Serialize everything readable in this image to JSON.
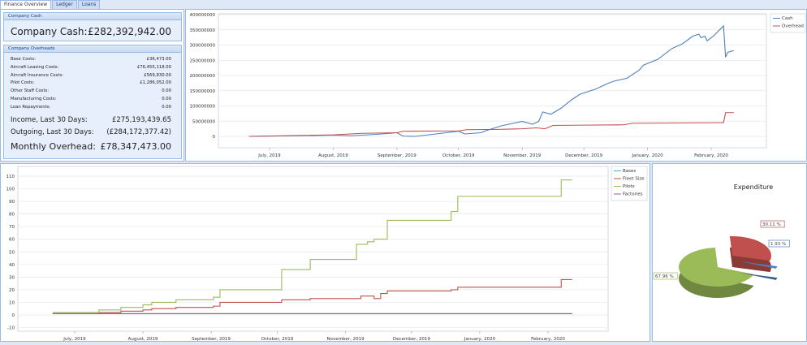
{
  "tabs": [
    "Finance Overview",
    "Ledger",
    "Loans"
  ],
  "company_cash": {
    "header": "Company Cash",
    "label": "Company Cash:",
    "value": "£282,392,942.00"
  },
  "overheads": {
    "header": "Company Overheads",
    "rows": [
      {
        "label": "Base Costs:",
        "value": "£36,473.00"
      },
      {
        "label": "Aircraft Leasing Costs:",
        "value": "£76,455,118.00"
      },
      {
        "label": "Aircraft Insurance Costs:",
        "value": "£569,830.00"
      },
      {
        "label": "Pilot Costs:",
        "value": "£1,286,052.00"
      },
      {
        "label": "Other Staff Costs:",
        "value": "0.00"
      },
      {
        "label": "Manufacturing Costs:",
        "value": "0.00"
      },
      {
        "label": "Loan Repayments:",
        "value": "0.00"
      }
    ],
    "income": {
      "label": "Income, Last 30 Days:",
      "value": "£275,193,439.65"
    },
    "outgoing": {
      "label": "Outgoing, Last 30 Days:",
      "value": "(£284,172,377.42)"
    },
    "monthly": {
      "label": "Monthly Overhead:",
      "value": "£78,347,473.00"
    }
  },
  "chart_data": [
    {
      "type": "line",
      "ylim": [
        0,
        400000000
      ],
      "yticks": [
        0,
        50000000,
        100000000,
        150000000,
        200000000,
        250000000,
        300000000,
        350000000,
        400000000
      ],
      "xticks": [
        [
          "2019-07-01",
          "July, 2019"
        ],
        [
          "2019-08-01",
          "August, 2019"
        ],
        [
          "2019-09-01",
          "September, 2019"
        ],
        [
          "2019-10-01",
          "October, 2019"
        ],
        [
          "2019-11-01",
          "November, 2019"
        ],
        [
          "2019-12-01",
          "December, 2019"
        ],
        [
          "2020-01-01",
          "January, 2020"
        ],
        [
          "2020-02-01",
          "February, 2020"
        ]
      ],
      "grid": true,
      "legend": "top-right",
      "series": [
        {
          "name": "Cash",
          "color": "#4f81bd",
          "points": [
            [
              "2019-06-21",
              0
            ],
            [
              "2019-07-15",
              2000000
            ],
            [
              "2019-08-01",
              4000000
            ],
            [
              "2019-08-10",
              2000000
            ],
            [
              "2019-08-25",
              8000000
            ],
            [
              "2019-09-01",
              12000000
            ],
            [
              "2019-09-04",
              1000000
            ],
            [
              "2019-09-10",
              0
            ],
            [
              "2019-09-25",
              12000000
            ],
            [
              "2019-10-01",
              17000000
            ],
            [
              "2019-10-04",
              8000000
            ],
            [
              "2019-10-12",
              12000000
            ],
            [
              "2019-10-14",
              18000000
            ],
            [
              "2019-10-22",
              35000000
            ],
            [
              "2019-10-27",
              42000000
            ],
            [
              "2019-11-01",
              49000000
            ],
            [
              "2019-11-06",
              40000000
            ],
            [
              "2019-11-09",
              49000000
            ],
            [
              "2019-11-11",
              80000000
            ],
            [
              "2019-11-15",
              73000000
            ],
            [
              "2019-11-20",
              93000000
            ],
            [
              "2019-11-25",
              120000000
            ],
            [
              "2019-11-29",
              138000000
            ],
            [
              "2019-12-07",
              156000000
            ],
            [
              "2019-12-13",
              175000000
            ],
            [
              "2019-12-16",
              182000000
            ],
            [
              "2019-12-22",
              191000000
            ],
            [
              "2019-12-28",
              218000000
            ],
            [
              "2019-12-30",
              234000000
            ],
            [
              "2020-01-06",
              253000000
            ],
            [
              "2020-01-13",
              289000000
            ],
            [
              "2020-01-18",
              304000000
            ],
            [
              "2020-01-23",
              329000000
            ],
            [
              "2020-01-26",
              336000000
            ],
            [
              "2020-01-27",
              324000000
            ],
            [
              "2020-01-29",
              329000000
            ],
            [
              "2020-01-30",
              314000000
            ],
            [
              "2020-02-02",
              329000000
            ],
            [
              "2020-02-07",
              363000000
            ],
            [
              "2020-02-08",
              260000000
            ],
            [
              "2020-02-09",
              276000000
            ],
            [
              "2020-02-12",
              282000000
            ]
          ]
        },
        {
          "name": "Overhead",
          "color": "#c0504d",
          "points": [
            [
              "2019-06-21",
              0
            ],
            [
              "2019-07-15",
              3000000
            ],
            [
              "2019-08-01",
              5000000
            ],
            [
              "2019-08-15",
              10000000
            ],
            [
              "2019-09-01",
              12000000
            ],
            [
              "2019-09-04",
              17000000
            ],
            [
              "2019-10-01",
              18000000
            ],
            [
              "2019-10-05",
              22000000
            ],
            [
              "2019-10-20",
              23000000
            ],
            [
              "2019-11-01",
              25000000
            ],
            [
              "2019-11-08",
              28000000
            ],
            [
              "2019-11-12",
              25000000
            ],
            [
              "2019-11-16",
              36000000
            ],
            [
              "2019-12-01",
              37000000
            ],
            [
              "2019-12-20",
              38000000
            ],
            [
              "2019-12-25",
              43000000
            ],
            [
              "2020-01-15",
              44000000
            ],
            [
              "2020-02-07",
              45000000
            ],
            [
              "2020-02-08",
              78000000
            ],
            [
              "2020-02-12",
              78000000
            ]
          ]
        }
      ]
    },
    {
      "type": "line",
      "ylim": [
        -10,
        115
      ],
      "yticks": [
        -10,
        0,
        10,
        20,
        30,
        40,
        50,
        60,
        70,
        80,
        90,
        100,
        110
      ],
      "xticks": [
        [
          "2019-07-01",
          "July, 2019"
        ],
        [
          "2019-08-01",
          "August, 2019"
        ],
        [
          "2019-09-01",
          "September, 2019"
        ],
        [
          "2019-10-01",
          "October, 2019"
        ],
        [
          "2019-11-01",
          "November, 2019"
        ],
        [
          "2019-12-01",
          "December, 2019"
        ],
        [
          "2020-01-01",
          "January, 2020"
        ],
        [
          "2020-02-01",
          "February, 2020"
        ]
      ],
      "grid": true,
      "legend": "top-right",
      "step": true,
      "series": [
        {
          "name": "Bases",
          "color": "#4bacc6",
          "points": [
            [
              "2019-06-21",
              1
            ],
            [
              "2020-02-12",
              1
            ]
          ]
        },
        {
          "name": "Fleet Size",
          "color": "#c0504d",
          "points": [
            [
              "2019-06-21",
              1
            ],
            [
              "2019-07-12",
              2
            ],
            [
              "2019-07-22",
              3
            ],
            [
              "2019-08-01",
              4
            ],
            [
              "2019-08-05",
              5
            ],
            [
              "2019-08-16",
              6
            ],
            [
              "2019-09-02",
              7
            ],
            [
              "2019-09-05",
              10
            ],
            [
              "2019-10-03",
              12
            ],
            [
              "2019-10-16",
              13
            ],
            [
              "2019-11-08",
              15
            ],
            [
              "2019-11-14",
              13
            ],
            [
              "2019-11-17",
              17
            ],
            [
              "2019-11-20",
              19
            ],
            [
              "2019-12-19",
              20
            ],
            [
              "2019-12-22",
              22
            ],
            [
              "2020-02-07",
              28
            ],
            [
              "2020-02-12",
              28
            ]
          ]
        },
        {
          "name": "Pilots",
          "color": "#9bbb59",
          "points": [
            [
              "2019-06-21",
              2
            ],
            [
              "2019-07-12",
              4
            ],
            [
              "2019-07-22",
              6
            ],
            [
              "2019-08-01",
              8
            ],
            [
              "2019-08-05",
              10
            ],
            [
              "2019-08-16",
              12
            ],
            [
              "2019-09-02",
              14
            ],
            [
              "2019-09-05",
              20
            ],
            [
              "2019-10-03",
              36
            ],
            [
              "2019-10-16",
              44
            ],
            [
              "2019-11-06",
              56
            ],
            [
              "2019-11-11",
              58
            ],
            [
              "2019-11-14",
              60
            ],
            [
              "2019-11-20",
              75
            ],
            [
              "2019-12-19",
              82
            ],
            [
              "2019-12-22",
              94
            ],
            [
              "2020-02-07",
              107
            ],
            [
              "2020-02-12",
              107
            ]
          ]
        },
        {
          "name": "Factories",
          "color": "#8064a2",
          "points": [
            [
              "2019-06-21",
              1
            ],
            [
              "2020-02-12",
              1
            ]
          ]
        }
      ]
    },
    {
      "type": "pie",
      "title": "Expenditure",
      "slices": [
        {
          "label": "67.96 %",
          "value": 67.96,
          "color": "#9bbb59"
        },
        {
          "label": "30.11 %",
          "value": 30.11,
          "color": "#c0504d"
        },
        {
          "label": "1.93 %",
          "value": 1.93,
          "color": "#4f81bd"
        }
      ]
    }
  ]
}
